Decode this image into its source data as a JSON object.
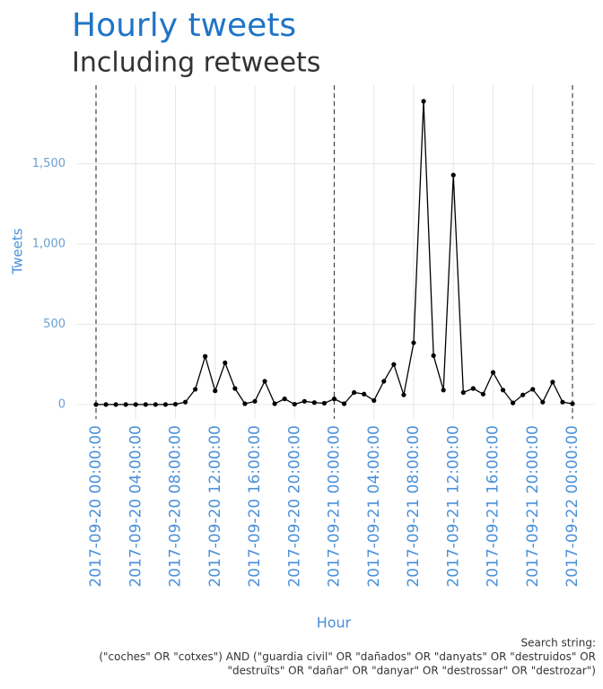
{
  "chart_data": {
    "type": "line",
    "title": "Hourly tweets",
    "subtitle": "Including retweets",
    "x_label": "Hour",
    "y_label": "Tweets",
    "caption": [
      "Search string:",
      "(\"coches\" OR \"cotxes\") AND (\"guardia civil\" OR \"dañados\" OR \"danyats\" OR \"destruidos\" OR",
      "\"destruïts\" OR \"dañar\" OR \"danyar\" OR \"destrossar\" OR \"destrozar\")"
    ],
    "x": [
      "2017-09-20 00:00:00",
      "2017-09-20 01:00:00",
      "2017-09-20 02:00:00",
      "2017-09-20 03:00:00",
      "2017-09-20 04:00:00",
      "2017-09-20 05:00:00",
      "2017-09-20 06:00:00",
      "2017-09-20 07:00:00",
      "2017-09-20 08:00:00",
      "2017-09-20 09:00:00",
      "2017-09-20 10:00:00",
      "2017-09-20 11:00:00",
      "2017-09-20 12:00:00",
      "2017-09-20 13:00:00",
      "2017-09-20 14:00:00",
      "2017-09-20 15:00:00",
      "2017-09-20 16:00:00",
      "2017-09-20 17:00:00",
      "2017-09-20 18:00:00",
      "2017-09-20 19:00:00",
      "2017-09-20 20:00:00",
      "2017-09-20 21:00:00",
      "2017-09-20 22:00:00",
      "2017-09-20 23:00:00",
      "2017-09-21 00:00:00",
      "2017-09-21 01:00:00",
      "2017-09-21 02:00:00",
      "2017-09-21 03:00:00",
      "2017-09-21 04:00:00",
      "2017-09-21 05:00:00",
      "2017-09-21 06:00:00",
      "2017-09-21 07:00:00",
      "2017-09-21 08:00:00",
      "2017-09-21 09:00:00",
      "2017-09-21 10:00:00",
      "2017-09-21 11:00:00",
      "2017-09-21 12:00:00",
      "2017-09-21 13:00:00",
      "2017-09-21 14:00:00",
      "2017-09-21 15:00:00",
      "2017-09-21 16:00:00",
      "2017-09-21 17:00:00",
      "2017-09-21 18:00:00",
      "2017-09-21 19:00:00",
      "2017-09-21 20:00:00",
      "2017-09-21 21:00:00",
      "2017-09-21 22:00:00",
      "2017-09-21 23:00:00",
      "2017-09-22 00:00:00"
    ],
    "series": [
      {
        "name": "Tweets",
        "color": "#000000",
        "values": [
          0,
          0,
          0,
          0,
          0,
          0,
          0,
          0,
          2,
          15,
          95,
          300,
          85,
          260,
          100,
          5,
          20,
          145,
          5,
          35,
          2,
          20,
          12,
          8,
          35,
          5,
          75,
          65,
          25,
          145,
          250,
          60,
          385,
          1890,
          305,
          90,
          1430,
          75,
          100,
          65,
          200,
          90,
          10,
          60,
          95,
          15,
          140,
          15,
          5
        ]
      }
    ],
    "xticks": [
      "2017-09-20 00:00:00",
      "2017-09-20 04:00:00",
      "2017-09-20 08:00:00",
      "2017-09-20 12:00:00",
      "2017-09-20 16:00:00",
      "2017-09-20 20:00:00",
      "2017-09-21 00:00:00",
      "2017-09-21 04:00:00",
      "2017-09-21 08:00:00",
      "2017-09-21 12:00:00",
      "2017-09-21 16:00:00",
      "2017-09-21 20:00:00",
      "2017-09-22 00:00:00"
    ],
    "vlines": [
      "2017-09-20 00:00:00",
      "2017-09-21 00:00:00",
      "2017-09-22 00:00:00"
    ],
    "ylim": [
      -90,
      1990
    ],
    "yticks": [
      0,
      500,
      {
        "value": 1000,
        "label": "1,000"
      },
      {
        "value": 1500,
        "label": "1,500"
      }
    ],
    "grid": true
  }
}
